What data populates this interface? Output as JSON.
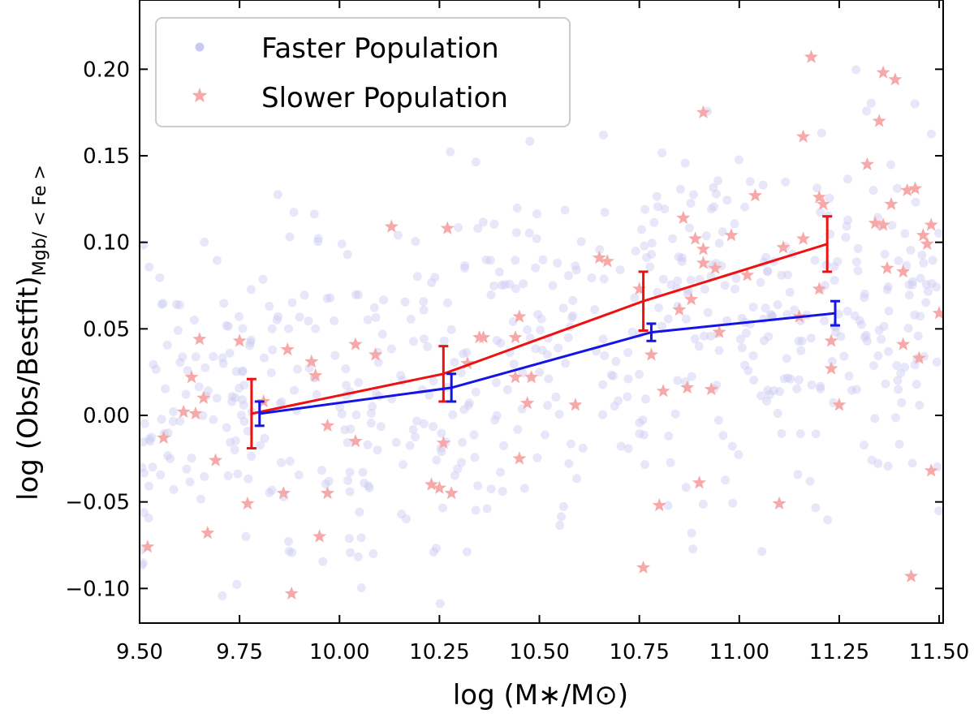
{
  "chart_data": {
    "type": "scatter",
    "xlabel": "log (M∗/M⊙)",
    "ylabel_main": "log (Obs/Bestfit)",
    "ylabel_sub": "Mgb/ < Fe >",
    "xlim": [
      9.5,
      11.51
    ],
    "ylim": [
      -0.12,
      0.24
    ],
    "xticks": [
      "9.50",
      "9.75",
      "10.00",
      "10.25",
      "10.50",
      "10.75",
      "11.00",
      "11.25",
      "11.50"
    ],
    "yticks": [
      "−0.10",
      "−0.05",
      "0.00",
      "0.05",
      "0.10",
      "0.15",
      "0.20"
    ],
    "legend": {
      "position": "upper-left",
      "entries": [
        "Faster Population",
        "Slower Population"
      ]
    },
    "colors": {
      "faster_points": "#c9c9f2",
      "slower_points": "#f7a8a8",
      "faster_line": "#1414e6",
      "slower_line": "#ee1111"
    },
    "series": [
      {
        "name": "Faster Population",
        "kind": "binned-mean",
        "x": [
          9.8,
          10.28,
          10.78,
          11.24
        ],
        "y": [
          0.001,
          0.016,
          0.048,
          0.059
        ],
        "yerr": [
          0.007,
          0.008,
          0.005,
          0.007
        ]
      },
      {
        "name": "Slower Population",
        "kind": "binned-mean",
        "x": [
          9.78,
          10.26,
          10.76,
          11.22
        ],
        "y": [
          0.001,
          0.024,
          0.066,
          0.099
        ],
        "yerr": [
          0.02,
          0.016,
          0.017,
          0.016
        ]
      }
    ],
    "scatter_slower": [
      [
        9.52,
        -0.076
      ],
      [
        9.56,
        -0.013
      ],
      [
        9.61,
        0.002
      ],
      [
        9.63,
        0.022
      ],
      [
        9.64,
        0.001
      ],
      [
        9.65,
        0.044
      ],
      [
        9.66,
        0.01
      ],
      [
        9.67,
        -0.068
      ],
      [
        9.69,
        -0.026
      ],
      [
        9.75,
        0.043
      ],
      [
        9.77,
        -0.051
      ],
      [
        9.81,
        0.008
      ],
      [
        9.86,
        -0.045
      ],
      [
        9.87,
        0.038
      ],
      [
        9.88,
        -0.103
      ],
      [
        9.93,
        0.031
      ],
      [
        9.94,
        0.023
      ],
      [
        9.95,
        -0.07
      ],
      [
        9.97,
        -0.006
      ],
      [
        9.97,
        -0.045
      ],
      [
        10.04,
        0.041
      ],
      [
        10.04,
        -0.015
      ],
      [
        10.09,
        0.035
      ],
      [
        10.13,
        0.109
      ],
      [
        10.23,
        -0.04
      ],
      [
        10.25,
        -0.042
      ],
      [
        10.26,
        -0.016
      ],
      [
        10.27,
        0.108
      ],
      [
        10.28,
        -0.045
      ],
      [
        10.32,
        0.03
      ],
      [
        10.35,
        0.045
      ],
      [
        10.36,
        0.045
      ],
      [
        10.44,
        0.022
      ],
      [
        10.44,
        0.045
      ],
      [
        10.45,
        0.057
      ],
      [
        10.45,
        -0.025
      ],
      [
        10.47,
        0.007
      ],
      [
        10.48,
        0.022
      ],
      [
        10.59,
        0.006
      ],
      [
        10.65,
        0.091
      ],
      [
        10.67,
        0.089
      ],
      [
        10.75,
        0.073
      ],
      [
        10.76,
        -0.088
      ],
      [
        10.78,
        0.035
      ],
      [
        10.8,
        -0.052
      ],
      [
        10.81,
        0.014
      ],
      [
        10.85,
        0.061
      ],
      [
        10.86,
        0.114
      ],
      [
        10.87,
        0.016
      ],
      [
        10.88,
        0.067
      ],
      [
        10.89,
        0.102
      ],
      [
        10.9,
        -0.039
      ],
      [
        10.91,
        0.175
      ],
      [
        10.91,
        0.088
      ],
      [
        10.91,
        0.096
      ],
      [
        10.93,
        0.015
      ],
      [
        10.94,
        0.085
      ],
      [
        10.95,
        0.048
      ],
      [
        10.98,
        0.104
      ],
      [
        11.02,
        0.081
      ],
      [
        11.04,
        0.127
      ],
      [
        11.1,
        -0.051
      ],
      [
        11.11,
        0.097
      ],
      [
        11.18,
        0.207
      ],
      [
        11.15,
        0.057
      ],
      [
        11.16,
        0.161
      ],
      [
        11.16,
        0.102
      ],
      [
        11.2,
        0.073
      ],
      [
        11.2,
        0.126
      ],
      [
        11.21,
        0.122
      ],
      [
        11.23,
        0.043
      ],
      [
        11.23,
        0.027
      ],
      [
        11.25,
        0.006
      ],
      [
        11.32,
        0.145
      ],
      [
        11.34,
        0.111
      ],
      [
        11.35,
        0.17
      ],
      [
        11.36,
        0.198
      ],
      [
        11.36,
        0.11
      ],
      [
        11.37,
        0.085
      ],
      [
        11.38,
        0.122
      ],
      [
        11.39,
        0.194
      ],
      [
        11.41,
        0.041
      ],
      [
        11.41,
        0.083
      ],
      [
        11.42,
        0.13
      ],
      [
        11.43,
        -0.093
      ],
      [
        11.44,
        0.131
      ],
      [
        11.45,
        0.033
      ],
      [
        11.46,
        0.104
      ],
      [
        11.47,
        0.099
      ],
      [
        11.48,
        0.11
      ],
      [
        11.48,
        -0.032
      ],
      [
        11.5,
        0.059
      ]
    ]
  }
}
